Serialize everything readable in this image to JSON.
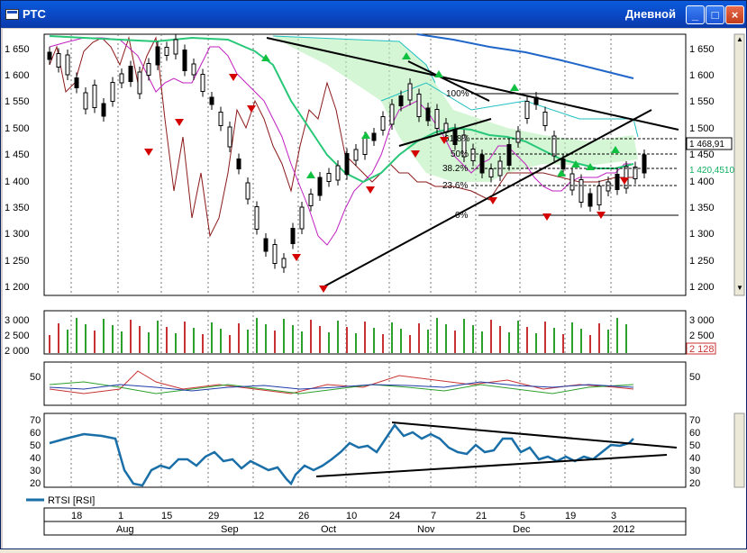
{
  "window": {
    "title": "РТС",
    "period": "Дневной",
    "minimize_glyph": "_",
    "maximize_glyph": "□",
    "close_glyph": "×"
  },
  "main_chart": {
    "y_ticks": [
      "1 650",
      "1 600",
      "1 550",
      "1 500",
      "1 450",
      "1 400",
      "1 350",
      "1 300",
      "1 250",
      "1 200"
    ],
    "last_price_label": "1 468,91",
    "ma_label": "1 420,4510",
    "fib_labels": [
      "100%",
      "61.8%",
      "50%",
      "38.2%",
      "23.6%",
      "0%"
    ]
  },
  "volume_panel": {
    "y_ticks": [
      "3 000",
      "2 500",
      "2 000"
    ],
    "last_value": "2 128"
  },
  "oscillator_panel": {
    "y_ticks": [
      "50"
    ]
  },
  "rsi_panel": {
    "y_ticks": [
      "70",
      "60",
      "50",
      "40",
      "30",
      "20"
    ],
    "legend": "RTSI [RSI]"
  },
  "x_axis": {
    "day_labels": [
      "18",
      "1",
      "15",
      "29",
      "12",
      "26",
      "10",
      "24",
      "7",
      "21",
      "5",
      "19",
      "3"
    ],
    "month_labels": [
      "Aug",
      "Sep",
      "Oct",
      "Nov",
      "Dec",
      "2012"
    ]
  },
  "colors": {
    "up_candle": "#ffffff",
    "down_candle": "#000000",
    "volume_up": "#2ca02c",
    "volume_down": "#c83232",
    "rsi_line": "#1a6fa8",
    "ma_line": "#28c878",
    "brown_line": "#8b1a1a",
    "magenta_line": "#c020c0",
    "blue_ma": "#1f66c8",
    "label_red": "#d40000",
    "label_green": "#10b060"
  }
}
